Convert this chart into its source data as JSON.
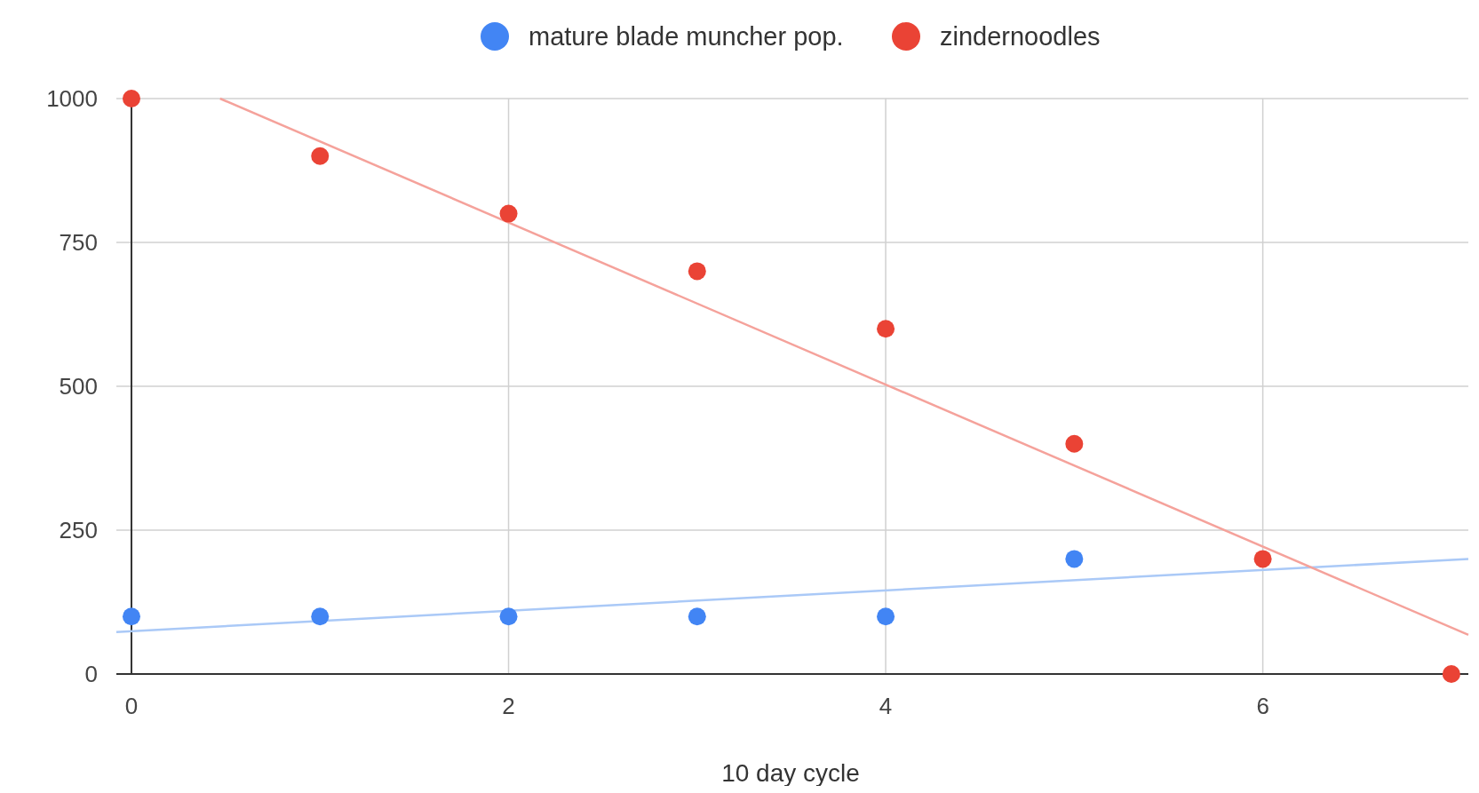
{
  "chart_data": {
    "type": "scatter",
    "xlabel": "10 day cycle",
    "xlim": [
      -0.08,
      7.09
    ],
    "xticks": [
      0,
      2,
      4,
      6
    ],
    "ylim": [
      0,
      1000
    ],
    "yticks": [
      0,
      250,
      500,
      750,
      1000
    ],
    "grid": true,
    "legend": "top",
    "marker": "circle",
    "series": [
      {
        "name": "mature blade muncher pop.",
        "color": "#4285f4",
        "x": [
          0,
          1,
          2,
          3,
          4,
          5
        ],
        "values": [
          100,
          100,
          100,
          100,
          100,
          200
        ]
      },
      {
        "name": "zindernoodles",
        "color": "#ea4335",
        "x": [
          0,
          1,
          2,
          3,
          4,
          5,
          6,
          7
        ],
        "values": [
          1000,
          900,
          800,
          700,
          600,
          400,
          200,
          0
        ]
      },
      {
        "type": "line",
        "marker": "none",
        "color": "#aac9f7",
        "x": [
          -0.08,
          7.09
        ],
        "values": [
          73,
          200
        ]
      },
      {
        "type": "line",
        "marker": "none",
        "color": "#f5a29b",
        "x": [
          0.47,
          7.09
        ],
        "values": [
          1000,
          68
        ]
      }
    ]
  }
}
